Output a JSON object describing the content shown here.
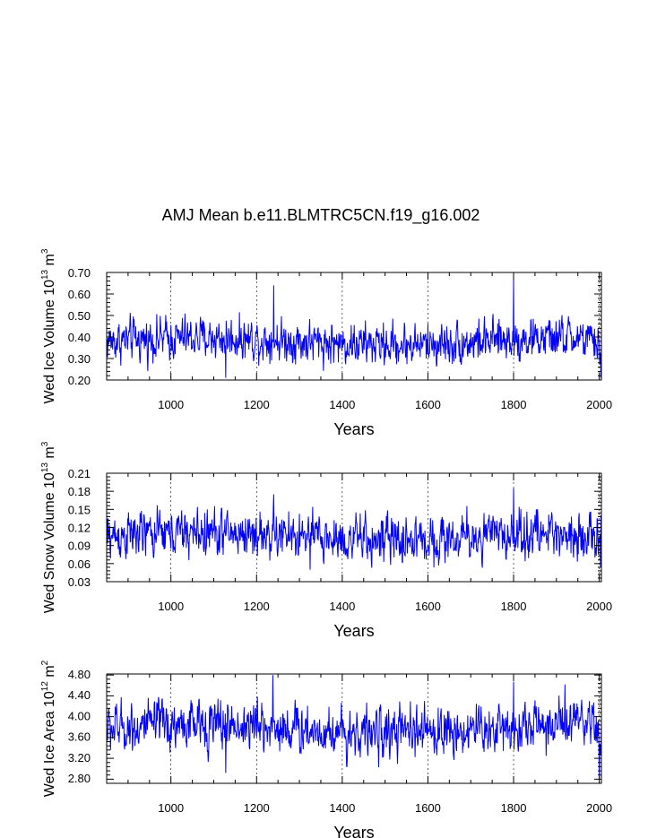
{
  "chart_data": {
    "title": "AMJ Mean b.e11.BLMTRC5CN.f19_g16.002",
    "panels": [
      {
        "type": "line",
        "series_name": "Wed Ice Volume",
        "ylabel_parts": [
          "Wed Ice Volume 10",
          "13",
          " m",
          "3"
        ],
        "xlabel": "Years",
        "xlim": [
          850,
          2005
        ],
        "ylim": [
          0.2,
          0.7
        ],
        "xticks": [
          1000,
          1200,
          1400,
          1600,
          1800,
          2000
        ],
        "yticks": [
          "0.20",
          "0.30",
          "0.40",
          "0.50",
          "0.60",
          "0.70"
        ],
        "ytick_values": [
          0.2,
          0.3,
          0.4,
          0.5,
          0.6,
          0.7
        ],
        "mean": 0.38,
        "amp": 0.045,
        "years": [
          850,
          2005
        ],
        "features": [
          {
            "year": 1240,
            "value": 0.64
          },
          {
            "year": 1800,
            "value": 0.67
          },
          {
            "year": 1128,
            "value": 0.21
          },
          {
            "year": 2004,
            "value": 0.21
          }
        ],
        "line_color": "#0000ff"
      },
      {
        "type": "line",
        "series_name": "Wed Snow Volume",
        "ylabel_parts": [
          "Wed Snow Volume 10",
          "13",
          " m",
          "3"
        ],
        "xlabel": "Years",
        "xlim": [
          850,
          2005
        ],
        "ylim": [
          0.03,
          0.21
        ],
        "xticks": [
          1000,
          1200,
          1400,
          1600,
          1800,
          2000
        ],
        "yticks": [
          "0.03",
          "0.06",
          "0.09",
          "0.12",
          "0.15",
          "0.18",
          "0.21"
        ],
        "ytick_values": [
          0.03,
          0.06,
          0.09,
          0.12,
          0.15,
          0.18,
          0.21
        ],
        "mean": 0.105,
        "amp": 0.018,
        "years": [
          850,
          2005
        ],
        "features": [
          {
            "year": 1240,
            "value": 0.175
          },
          {
            "year": 1800,
            "value": 0.185
          },
          {
            "year": 1325,
            "value": 0.05
          },
          {
            "year": 2003,
            "value": 0.055
          }
        ],
        "line_color": "#0000ff"
      },
      {
        "type": "line",
        "series_name": "Wed Ice Area",
        "ylabel_parts": [
          "Wed Ice Area 10",
          "12",
          " m",
          "2"
        ],
        "xlabel": "Years",
        "xlim": [
          850,
          2005
        ],
        "ylim": [
          2.7,
          4.8
        ],
        "xticks": [
          1000,
          1200,
          1400,
          1600,
          1800,
          2000
        ],
        "yticks": [
          "2.80",
          "3.20",
          "3.60",
          "4.00",
          "4.40",
          "4.80"
        ],
        "ytick_values": [
          2.8,
          3.2,
          3.6,
          4.0,
          4.4,
          4.8
        ],
        "mean": 3.75,
        "amp": 0.22,
        "years": [
          850,
          2005
        ],
        "features": [
          {
            "year": 1238,
            "value": 4.78
          },
          {
            "year": 1800,
            "value": 4.65
          },
          {
            "year": 1920,
            "value": 4.6
          },
          {
            "year": 1128,
            "value": 2.9
          },
          {
            "year": 2000,
            "value": 2.8
          }
        ],
        "line_color": "#0000ff"
      }
    ]
  }
}
